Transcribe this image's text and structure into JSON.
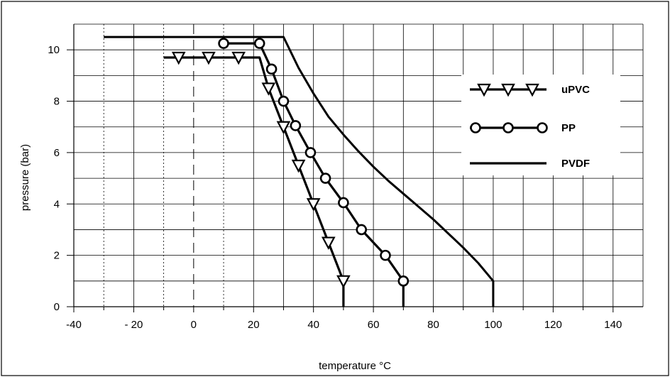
{
  "chart_data": {
    "type": "line",
    "title": "",
    "xlabel": "temperature °C",
    "ylabel": "pressure  (bar)",
    "xlim": [
      -40,
      150
    ],
    "ylim": [
      0,
      11
    ],
    "x_ticks": [
      -40,
      -20,
      0,
      20,
      40,
      60,
      80,
      100,
      120,
      140
    ],
    "x_tick_labels": [
      "-40",
      "- 20",
      "0",
      "20",
      "40",
      "60",
      "80",
      "100",
      "120",
      "140"
    ],
    "y_ticks": [
      0,
      2,
      4,
      6,
      8,
      10
    ],
    "y_tick_labels": [
      "0",
      "2",
      "4",
      "6",
      "8",
      "10"
    ],
    "grid": true,
    "legend_position": "right",
    "series": [
      {
        "name": "uPVC",
        "marker": "triangle-down",
        "color": "#000000",
        "points": [
          [
            -10,
            9.7
          ],
          [
            22,
            9.7
          ],
          [
            25,
            8.5
          ],
          [
            30,
            7.0
          ],
          [
            35,
            5.5
          ],
          [
            40,
            4.0
          ],
          [
            45,
            2.5
          ],
          [
            50,
            1.0
          ],
          [
            50,
            0
          ]
        ],
        "marker_points": [
          [
            -5,
            9.7
          ],
          [
            5,
            9.7
          ],
          [
            15,
            9.7
          ],
          [
            25,
            8.5
          ],
          [
            30,
            7.0
          ],
          [
            35,
            5.5
          ],
          [
            40,
            4.0
          ],
          [
            45,
            2.5
          ],
          [
            50,
            1.0
          ]
        ]
      },
      {
        "name": "PP",
        "marker": "circle",
        "color": "#000000",
        "points": [
          [
            10,
            10.25
          ],
          [
            22,
            10.25
          ],
          [
            26,
            9.25
          ],
          [
            30,
            8.0
          ],
          [
            34,
            7.05
          ],
          [
            39,
            6.0
          ],
          [
            44,
            5.0
          ],
          [
            50,
            4.05
          ],
          [
            56,
            3.0
          ],
          [
            64,
            2.0
          ],
          [
            70,
            1.0
          ],
          [
            70,
            0
          ]
        ],
        "marker_points": [
          [
            10,
            10.25
          ],
          [
            22,
            10.25
          ],
          [
            26,
            9.25
          ],
          [
            30,
            8.0
          ],
          [
            34,
            7.05
          ],
          [
            39,
            6.0
          ],
          [
            44,
            5.0
          ],
          [
            50,
            4.05
          ],
          [
            56,
            3.0
          ],
          [
            64,
            2.0
          ],
          [
            70,
            1.0
          ]
        ]
      },
      {
        "name": "PVDF",
        "marker": "none",
        "color": "#000000",
        "points": [
          [
            -30,
            10.5
          ],
          [
            30,
            10.5
          ],
          [
            35,
            9.3
          ],
          [
            40,
            8.3
          ],
          [
            45,
            7.4
          ],
          [
            50,
            6.7
          ],
          [
            55,
            6.05
          ],
          [
            60,
            5.45
          ],
          [
            65,
            4.9
          ],
          [
            70,
            4.4
          ],
          [
            75,
            3.9
          ],
          [
            80,
            3.4
          ],
          [
            85,
            2.85
          ],
          [
            90,
            2.3
          ],
          [
            95,
            1.7
          ],
          [
            100,
            1.0
          ],
          [
            100,
            0
          ]
        ]
      }
    ]
  }
}
